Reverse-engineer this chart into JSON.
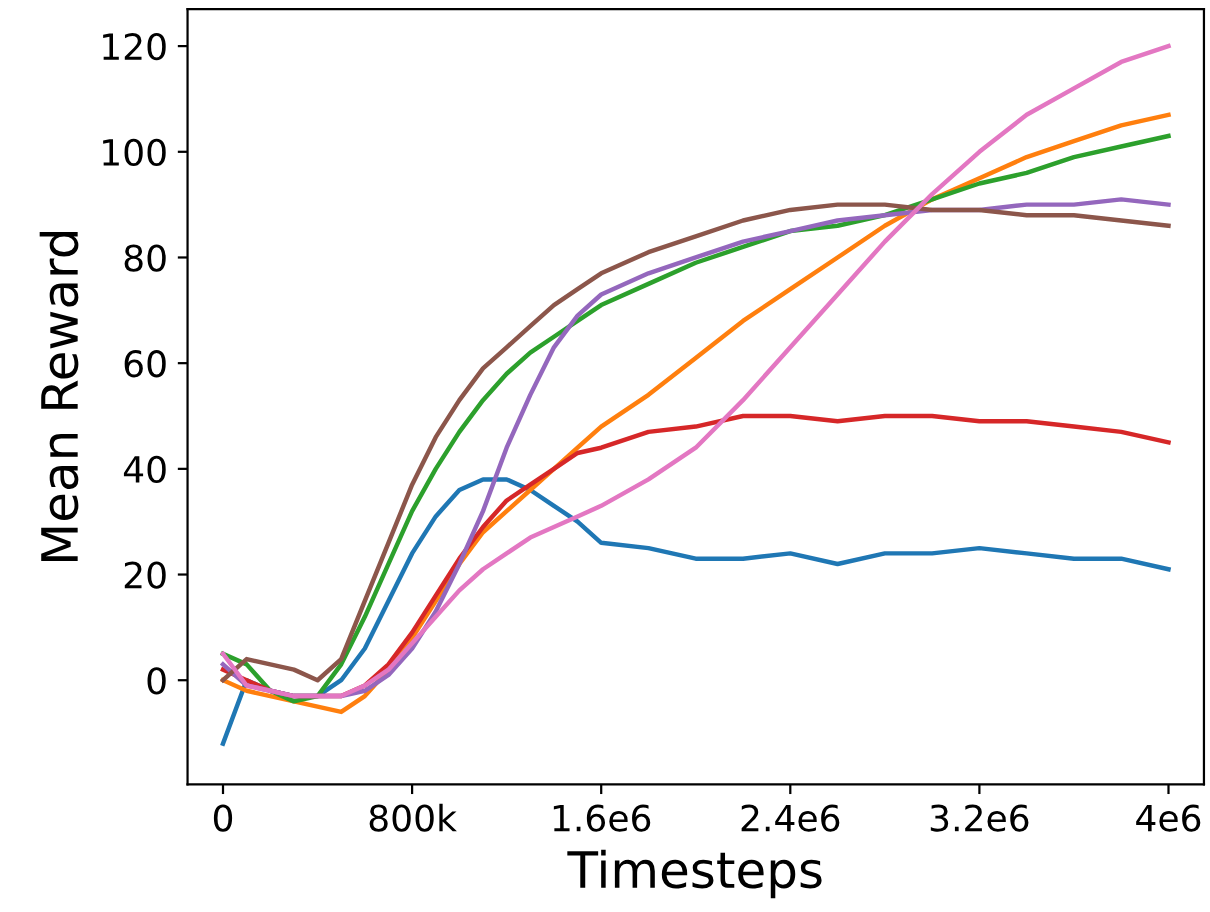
{
  "chart_data": {
    "type": "line",
    "xlabel": "Timesteps",
    "ylabel": "Mean Reward",
    "x": [
      0,
      100000,
      200000,
      300000,
      400000,
      500000,
      600000,
      700000,
      800000,
      900000,
      1000000,
      1100000,
      1200000,
      1300000,
      1400000,
      1500000,
      1600000,
      1800000,
      2000000,
      2200000,
      2400000,
      2600000,
      2800000,
      3000000,
      3200000,
      3400000,
      3600000,
      3800000,
      4000000
    ],
    "series": [
      {
        "color": "#1f77b4",
        "values": [
          -12,
          0,
          -2,
          -3,
          -3,
          0,
          6,
          15,
          24,
          31,
          36,
          38,
          38,
          36,
          33,
          30,
          26,
          25,
          23,
          23,
          24,
          22,
          24,
          24,
          25,
          24,
          23,
          23,
          21
        ]
      },
      {
        "color": "#ff7f0e",
        "values": [
          0,
          -2,
          -3,
          -4,
          -5,
          -6,
          -3,
          2,
          8,
          15,
          22,
          28,
          32,
          36,
          40,
          44,
          48,
          54,
          61,
          68,
          74,
          80,
          86,
          91,
          95,
          99,
          102,
          105,
          107
        ]
      },
      {
        "color": "#2ca02c",
        "values": [
          5,
          3,
          -2,
          -4,
          -3,
          3,
          12,
          22,
          32,
          40,
          47,
          53,
          58,
          62,
          65,
          68,
          71,
          75,
          79,
          82,
          85,
          86,
          88,
          91,
          94,
          96,
          99,
          101,
          103
        ]
      },
      {
        "color": "#d62728",
        "values": [
          2,
          0,
          -2,
          -3,
          -3,
          -3,
          -1,
          3,
          9,
          16,
          23,
          29,
          34,
          37,
          40,
          43,
          44,
          47,
          48,
          50,
          50,
          49,
          50,
          50,
          49,
          49,
          48,
          47,
          45
        ]
      },
      {
        "color": "#9467bd",
        "values": [
          3,
          -1,
          -2,
          -3,
          -3,
          -3,
          -2,
          1,
          6,
          13,
          22,
          32,
          44,
          54,
          63,
          69,
          73,
          77,
          80,
          83,
          85,
          87,
          88,
          89,
          89,
          90,
          90,
          91,
          90
        ]
      },
      {
        "color": "#8c564b",
        "values": [
          0,
          4,
          3,
          2,
          0,
          4,
          15,
          26,
          37,
          46,
          53,
          59,
          63,
          67,
          71,
          74,
          77,
          81,
          84,
          87,
          89,
          90,
          90,
          89,
          89,
          88,
          88,
          87,
          86
        ]
      },
      {
        "color": "#e377c2",
        "values": [
          5,
          -1,
          -2,
          -3,
          -3,
          -3,
          -1,
          2,
          7,
          12,
          17,
          21,
          24,
          27,
          29,
          31,
          33,
          38,
          44,
          53,
          63,
          73,
          83,
          92,
          100,
          107,
          112,
          117,
          120
        ]
      }
    ],
    "xlim": [
      -150000,
      4150000
    ],
    "ylim": [
      -19.7,
      127
    ],
    "xticks": [
      0,
      {
        "value": 800000,
        "label": "800k"
      },
      {
        "value": 1600000,
        "label": "1.6e6"
      },
      {
        "value": 2400000,
        "label": "2.4e6"
      },
      {
        "value": 3200000,
        "label": "3.2e6"
      },
      {
        "value": 4000000,
        "label": "4e6"
      }
    ],
    "yticks": [
      0,
      20,
      40,
      60,
      80,
      100,
      120
    ],
    "grid": false
  }
}
